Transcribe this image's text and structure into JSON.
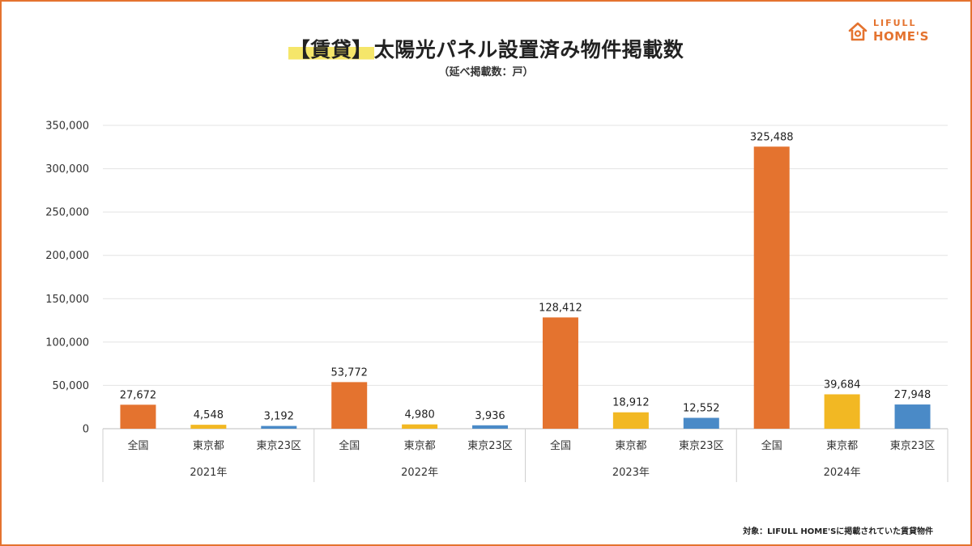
{
  "header": {
    "title_tag": "【賃貸】",
    "title_main": "太陽光パネル設置済み物件掲載数",
    "subtitle": "（延べ掲載数：戸）"
  },
  "logo": {
    "top": "LIFULL",
    "bottom": "HOME'S"
  },
  "footnote": "対象：LIFULL HOME'Sに掲載されていた賃貸物件",
  "colors": {
    "accent": "#e4732f",
    "nationwide": "#e4732f",
    "tokyo": "#f2b823",
    "tokyo23": "#4a8ac7"
  },
  "chart_data": {
    "type": "bar",
    "title": "【賃貸】太陽光パネル設置済み物件掲載数",
    "subtitle": "（延べ掲載数：戸）",
    "groups": [
      "2021年",
      "2022年",
      "2023年",
      "2024年"
    ],
    "categories": [
      "全国",
      "東京都",
      "東京23区"
    ],
    "series": [
      {
        "values": [
          27672,
          4548,
          3192
        ],
        "display": [
          "27,672",
          "4,548",
          "3,192"
        ]
      },
      {
        "values": [
          53772,
          4980,
          3936
        ],
        "display": [
          "53,772",
          "4,980",
          "3,936"
        ]
      },
      {
        "values": [
          128412,
          18912,
          12552
        ],
        "display": [
          "128,412",
          "18,912",
          "12,552"
        ]
      },
      {
        "values": [
          325488,
          39684,
          27948
        ],
        "display": [
          "325,488",
          "39,684",
          "27,948"
        ]
      }
    ],
    "bar_colors": [
      "#e4732f",
      "#f2b823",
      "#4a8ac7"
    ],
    "ylim": [
      0,
      350000
    ],
    "yticks": [
      0,
      50000,
      100000,
      150000,
      200000,
      250000,
      300000,
      350000
    ],
    "ytick_labels": [
      "0",
      "50,000",
      "100,000",
      "150,000",
      "200,000",
      "250,000",
      "300,000",
      "350,000"
    ],
    "grid": true
  }
}
